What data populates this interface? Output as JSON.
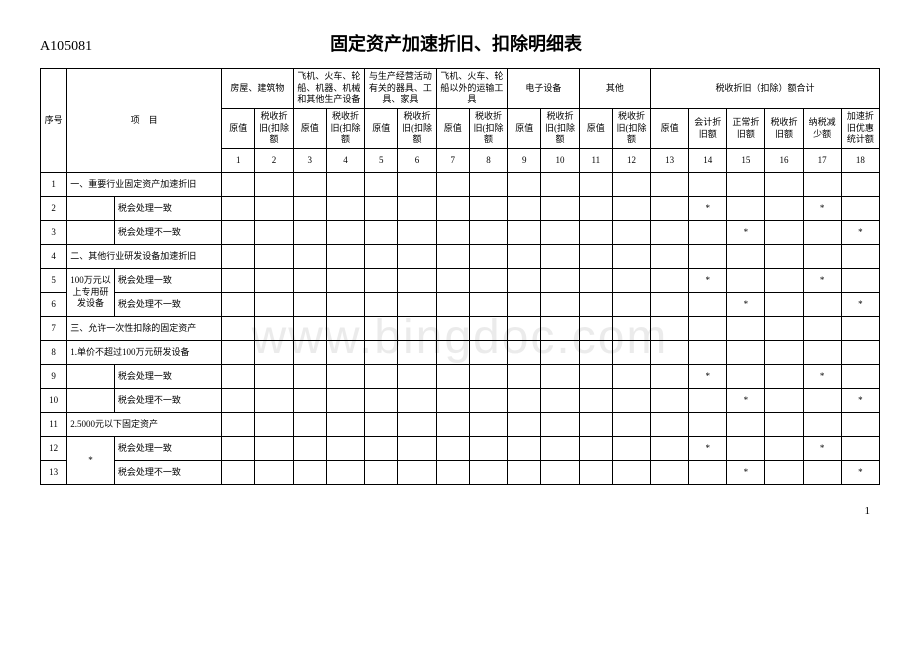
{
  "form_code": "A105081",
  "title": "固定资产加速折旧、扣除明细表",
  "watermark": "www.bingdoc.com",
  "page_number": "1",
  "headers": {
    "seq": "序号",
    "item": "项　目",
    "group1": "房屋、建筑物",
    "group2": "飞机、火车、轮船、机器、机械和其他生产设备",
    "group3": "与生产经营活动有关的器具、工具、家具",
    "group4": "飞机、火车、轮船以外的运输工具",
    "group5": "电子设备",
    "group6": "其他",
    "group7": "税收折旧（扣除）额合计",
    "sub_yuan": "原值",
    "sub_tax": "税收折旧(扣除额",
    "sum1": "原值",
    "sum2": "会计折旧额",
    "sum3": "正常折旧额",
    "sum4": "税收折旧额",
    "sum5": "纳税减少额",
    "sum6": "加速折旧优惠统计额",
    "nums": [
      "1",
      "2",
      "3",
      "4",
      "5",
      "6",
      "7",
      "8",
      "9",
      "10",
      "11",
      "12",
      "13",
      "14",
      "15",
      "16",
      "17",
      "18"
    ]
  },
  "rows": [
    {
      "n": "1",
      "a": "一、重要行业固定资产加速折旧",
      "span": 2,
      "s": {}
    },
    {
      "n": "2",
      "a": "",
      "b": "税会处理一致",
      "s": {
        "14": "*",
        "17": "*"
      }
    },
    {
      "n": "3",
      "a": "",
      "b": "税会处理不一致",
      "s": {
        "15": "*",
        "18": "*"
      }
    },
    {
      "n": "4",
      "a": "二、其他行业研发设备加速折旧",
      "span": 2,
      "s": {}
    },
    {
      "n": "5",
      "a": "100万元以上专用研发设备",
      "b": "税会处理一致",
      "rs": 2,
      "s": {
        "14": "*",
        "17": "*"
      }
    },
    {
      "n": "6",
      "b": "税会处理不一致",
      "s": {
        "15": "*",
        "18": "*"
      }
    },
    {
      "n": "7",
      "a": "三、允许一次性扣除的固定资产",
      "span": 2,
      "s": {}
    },
    {
      "n": "8",
      "a": "1.单价不超过100万元研发设备",
      "span": 2,
      "s": {}
    },
    {
      "n": "9",
      "a": "",
      "b": "税会处理一致",
      "s": {
        "14": "*",
        "17": "*"
      }
    },
    {
      "n": "10",
      "a": "",
      "b": "税会处理不一致",
      "s": {
        "15": "*",
        "18": "*"
      }
    },
    {
      "n": "11",
      "a": "2.5000元以下固定资产",
      "span": 2,
      "s": {}
    },
    {
      "n": "12",
      "a": "*",
      "b": "税会处理一致",
      "rs": 2,
      "s": {
        "14": "*",
        "17": "*"
      }
    },
    {
      "n": "13",
      "b": "税会处理不一致",
      "s": {
        "15": "*",
        "18": "*"
      }
    }
  ]
}
